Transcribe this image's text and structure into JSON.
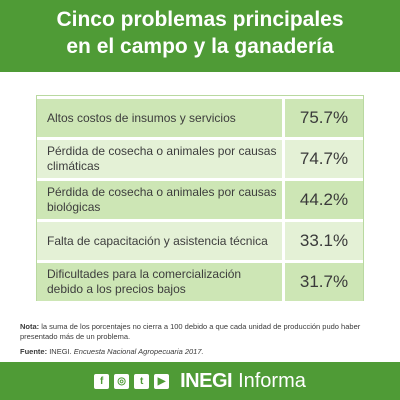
{
  "title_line1": "Cinco problemas principales",
  "title_line2": "en el campo y la ganadería",
  "chart_data": {
    "type": "table",
    "rows": [
      {
        "label": "Altos costos de insumos y servicios",
        "value": 75.7,
        "display": "75.7%"
      },
      {
        "label": "Pérdida de cosecha o animales por causas climáticas",
        "value": 74.7,
        "display": "74.7%"
      },
      {
        "label": "Pérdida de cosecha o animales por causas biológicas",
        "value": 44.2,
        "display": "44.2%"
      },
      {
        "label": "Falta de capacitación y asistencia técnica",
        "value": 33.1,
        "display": "33.1%"
      },
      {
        "label": "Dificultades para la comercialización debido a los precios bajos",
        "value": 31.7,
        "display": "31.7%"
      }
    ]
  },
  "note_label": "Nota:",
  "note_text": "la suma de los porcentajes no cierra a 100 debido a que cada unidad de producción pudo haber presentado más de un problema.",
  "source_label": "Fuente:",
  "source_org": "INEGI.",
  "source_title": "Encuesta Nacional Agropecuaria 2017.",
  "footer": {
    "brand": "INEGI",
    "brand_sub": "Informa",
    "icons": [
      "facebook-icon",
      "instagram-icon",
      "twitter-icon",
      "youtube-icon"
    ],
    "icon_glyphs": [
      "f",
      "◎",
      "t",
      "▶"
    ]
  },
  "colors": {
    "green": "#4f9b36",
    "row_dark": "#cde6b5",
    "row_light": "#e4f1d6"
  }
}
